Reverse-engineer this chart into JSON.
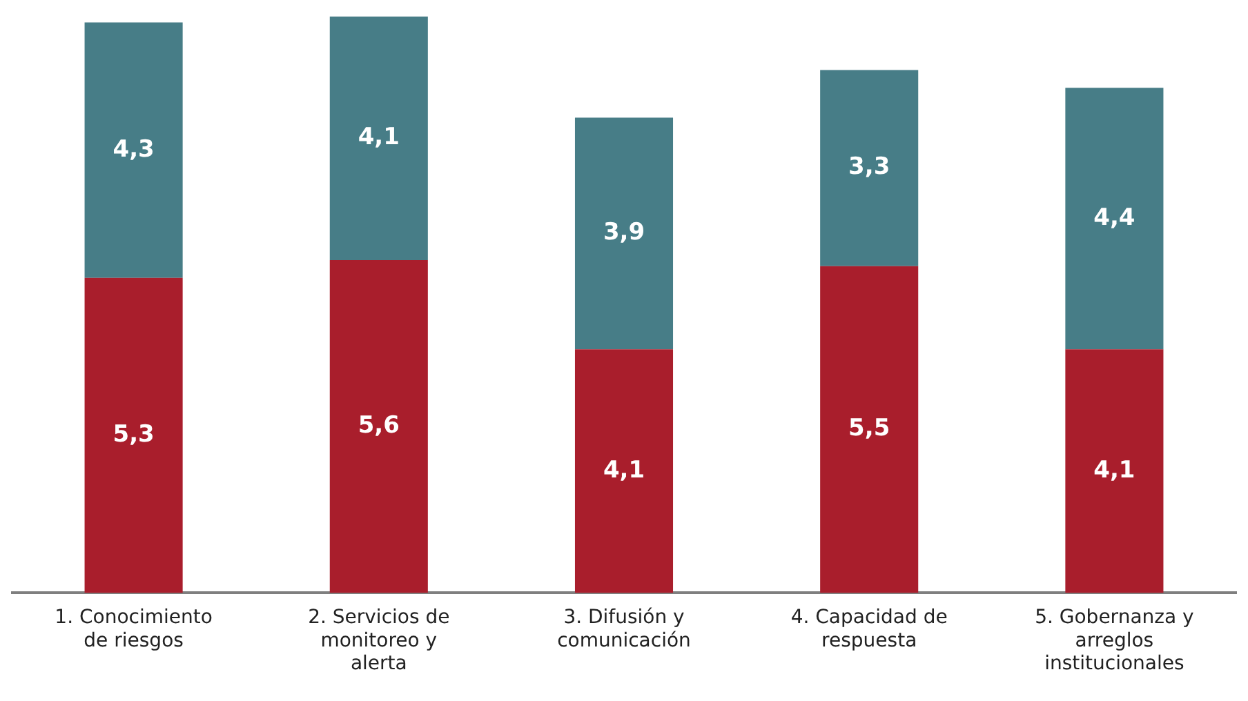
{
  "chart_data": {
    "type": "bar",
    "stacked": true,
    "categories": [
      "1. Conocimiento de riesgos",
      "2. Servicios de monitoreo y alerta",
      "3. Difusión y comunicación",
      "4. Capacidad de respuesta",
      "5. Gobernanza y arreglos institucionales"
    ],
    "series": [
      {
        "color": "#a91e2c",
        "values": [
          5.3,
          5.6,
          4.1,
          5.5,
          4.1
        ],
        "value_labels": [
          "5,3",
          "5,6",
          "4,1",
          "5,5",
          "4,1"
        ]
      },
      {
        "color": "#477d87",
        "values": [
          4.3,
          4.1,
          3.9,
          3.3,
          4.4
        ],
        "value_labels": [
          "4,3",
          "4,1",
          "3,9",
          "3,3",
          "4,4"
        ]
      }
    ],
    "grid": false,
    "legend": false
  }
}
